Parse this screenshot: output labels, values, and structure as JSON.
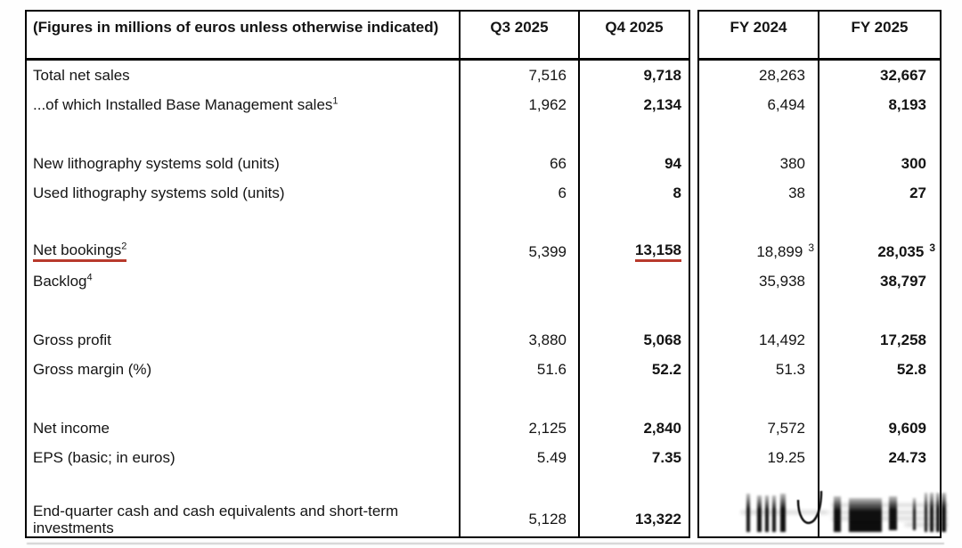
{
  "colors": {
    "border": "#000000",
    "text": "#141414",
    "red_underline": "#b83a2c"
  },
  "table": {
    "title": "(Figures in millions of euros unless otherwise indicated)",
    "columns": [
      "Q3 2025",
      "Q4 2025",
      "FY 2024",
      "FY 2025"
    ],
    "rows": [
      {
        "label": "Total net sales",
        "q3": "7,516",
        "q4": "9,718",
        "fy2024": "28,263",
        "fy2025": "32,667"
      },
      {
        "label": "...of which Installed Base Management sales",
        "label_sup": "1",
        "q3": "1,962",
        "q4": "2,134",
        "fy2024": "6,494",
        "fy2025": "8,193"
      },
      {
        "blank": true
      },
      {
        "label": "New lithography systems sold (units)",
        "q3": "66",
        "q4": "94",
        "fy2024": "380",
        "fy2025": "300"
      },
      {
        "label": "Used lithography systems sold (units)",
        "q3": "6",
        "q4": "8",
        "fy2024": "38",
        "fy2025": "27"
      },
      {
        "blank": true
      },
      {
        "label": "Net bookings",
        "label_sup": "2",
        "label_underline": true,
        "q3": "5,399",
        "q4": "13,158",
        "q4_underline": true,
        "fy2024": "18,899",
        "fy2024_sup": "3",
        "fy2025": "28,035",
        "fy2025_sup": "3"
      },
      {
        "label": "Backlog",
        "label_sup": "4",
        "q3": "",
        "q4": "",
        "fy2024": "35,938",
        "fy2025": "38,797"
      },
      {
        "blank": true
      },
      {
        "label": "Gross profit",
        "q3": "3,880",
        "q4": "5,068",
        "fy2024": "14,492",
        "fy2025": "17,258"
      },
      {
        "label": "Gross margin (%)",
        "q3": "51.6",
        "q4": "52.2",
        "fy2024": "51.3",
        "fy2025": "52.8"
      },
      {
        "blank": true
      },
      {
        "label": "Net income",
        "q3": "2,125",
        "q4": "2,840",
        "fy2024": "7,572",
        "fy2025": "9,609"
      },
      {
        "label": "EPS (basic; in euros)",
        "q3": "5.49",
        "q4": "7.35",
        "fy2024": "19.25",
        "fy2025": "24.73"
      },
      {
        "blank": true
      },
      {
        "label": "End-quarter cash and cash equivalents and short-term investments",
        "q3": "5,128",
        "q4": "13,322",
        "fy2024": "",
        "fy2025": "",
        "last": true
      }
    ]
  },
  "watermark": {
    "type": "blurred-redaction",
    "location": "bottom-right-cells"
  }
}
